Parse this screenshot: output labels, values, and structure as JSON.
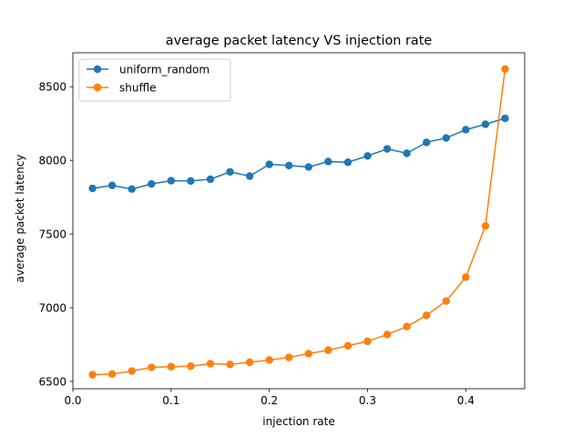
{
  "chart_data": {
    "type": "line",
    "title": "average packet latency VS injection rate",
    "xlabel": "injection rate",
    "ylabel": "average packet latency",
    "xlim": [
      0.0,
      0.46
    ],
    "ylim": [
      6450,
      8730
    ],
    "xticks": [
      0.0,
      0.1,
      0.2,
      0.3,
      0.4
    ],
    "xtick_labels": [
      "0.0",
      "0.1",
      "0.2",
      "0.3",
      "0.4"
    ],
    "yticks": [
      6500,
      7000,
      7500,
      8000,
      8500
    ],
    "ytick_labels": [
      "6500",
      "7000",
      "7500",
      "8000",
      "8500"
    ],
    "grid": false,
    "legend_position": "top-left",
    "x": [
      0.02,
      0.04,
      0.06,
      0.08,
      0.1,
      0.12,
      0.14,
      0.16,
      0.18,
      0.2,
      0.22,
      0.24,
      0.26,
      0.28,
      0.3,
      0.32,
      0.34,
      0.36,
      0.38,
      0.4,
      0.42,
      0.44
    ],
    "series": [
      {
        "name": "uniform_random",
        "color": "#1f77b4",
        "values": [
          7810,
          7830,
          7805,
          7840,
          7862,
          7860,
          7872,
          7922,
          7893,
          7973,
          7965,
          7955,
          7992,
          7987,
          8030,
          8078,
          8048,
          8122,
          8152,
          8208,
          8245,
          8285
        ]
      },
      {
        "name": "shuffle",
        "color": "#ff7f0e",
        "values": [
          6545,
          6550,
          6570,
          6595,
          6600,
          6603,
          6620,
          6615,
          6630,
          6645,
          6663,
          6688,
          6712,
          6742,
          6772,
          6818,
          6872,
          6948,
          7045,
          7207,
          7555,
          8620
        ]
      }
    ]
  }
}
